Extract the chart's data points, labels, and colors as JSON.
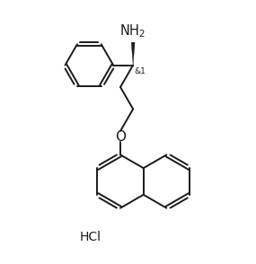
{
  "background_color": "#ffffff",
  "line_color": "#1a1a1a",
  "line_width": 1.4,
  "font_size_label": 9,
  "font_size_hcl": 10,
  "HCl_label": "HCl",
  "stereo_label": "&1"
}
